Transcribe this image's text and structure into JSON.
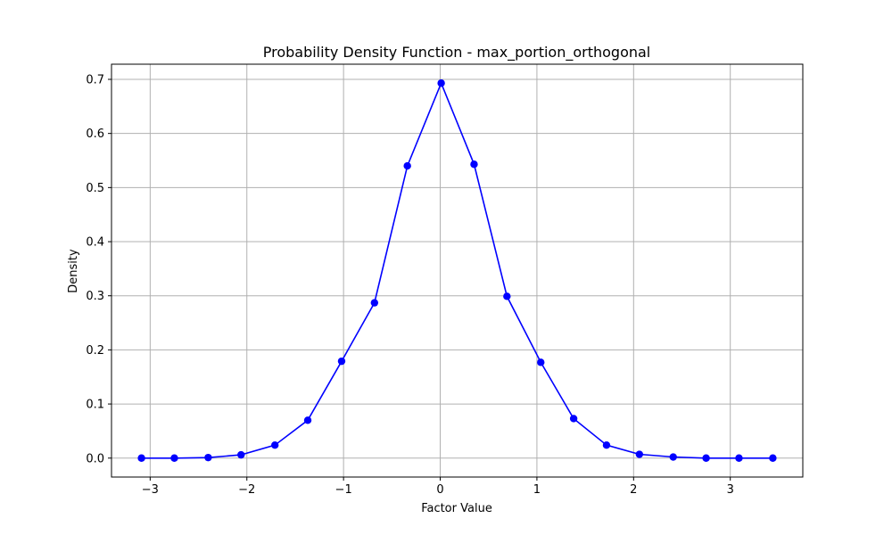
{
  "chart_data": {
    "type": "line",
    "title": "Probability Density Function - max_portion_orthogonal",
    "xlabel": "Factor Value",
    "ylabel": "Density",
    "xlim": [
      -3.4,
      3.75
    ],
    "ylim": [
      -0.035,
      0.728
    ],
    "xticks": [
      -3,
      -2,
      -1,
      0,
      1,
      2,
      3
    ],
    "xtick_labels": [
      "−3",
      "−2",
      "−1",
      "0",
      "1",
      "2",
      "3"
    ],
    "yticks": [
      0.0,
      0.1,
      0.2,
      0.3,
      0.4,
      0.5,
      0.6,
      0.7
    ],
    "ytick_labels": [
      "0.0",
      "0.1",
      "0.2",
      "0.3",
      "0.4",
      "0.5",
      "0.6",
      "0.7"
    ],
    "grid": true,
    "colors": {
      "line": "#0000ff",
      "grid": "#b0b0b0",
      "frame": "#000000"
    },
    "series": [
      {
        "marker": "circle",
        "x": [
          -3.09,
          -2.75,
          -2.4,
          -2.06,
          -1.71,
          -1.37,
          -1.02,
          -0.68,
          -0.34,
          0.01,
          0.35,
          0.69,
          1.04,
          1.38,
          1.72,
          2.06,
          2.41,
          2.75,
          3.09,
          3.44
        ],
        "y": [
          0.0,
          0.0,
          0.001,
          0.006,
          0.024,
          0.07,
          0.179,
          0.287,
          0.54,
          0.693,
          0.543,
          0.299,
          0.177,
          0.073,
          0.024,
          0.007,
          0.002,
          0.0,
          0.0,
          0.0
        ]
      }
    ]
  }
}
